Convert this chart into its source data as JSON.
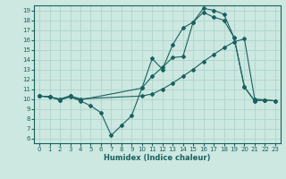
{
  "xlabel": "Humidex (Indice chaleur)",
  "xlim": [
    -0.5,
    23.5
  ],
  "ylim": [
    5.5,
    19.5
  ],
  "xticks": [
    0,
    1,
    2,
    3,
    4,
    5,
    6,
    7,
    8,
    9,
    10,
    11,
    12,
    13,
    14,
    15,
    16,
    17,
    18,
    19,
    20,
    21,
    22,
    23
  ],
  "yticks": [
    6,
    7,
    8,
    9,
    10,
    11,
    12,
    13,
    14,
    15,
    16,
    17,
    18,
    19
  ],
  "bg_color": "#cce8e0",
  "grid_color": "#aed4cc",
  "line_color": "#1a6060",
  "line1_x": [
    0,
    1,
    2,
    3,
    4,
    5,
    6,
    7,
    8,
    9,
    10,
    11,
    12,
    13,
    14,
    15,
    16,
    17,
    18,
    19,
    20,
    21,
    22,
    23
  ],
  "line1_y": [
    10.3,
    10.2,
    9.9,
    10.2,
    9.8,
    9.3,
    8.6,
    6.3,
    7.3,
    8.3,
    11.1,
    14.1,
    13.0,
    15.5,
    17.2,
    17.8,
    19.2,
    19.0,
    18.6,
    16.2,
    11.2,
    9.8,
    9.9,
    9.8
  ],
  "line2_x": [
    0,
    1,
    2,
    3,
    4,
    10,
    11,
    12,
    13,
    14,
    15,
    16,
    17,
    18,
    19,
    20,
    21,
    22,
    23
  ],
  "line2_y": [
    10.3,
    10.2,
    9.9,
    10.3,
    10.0,
    10.3,
    10.5,
    11.0,
    11.6,
    12.3,
    13.0,
    13.8,
    14.5,
    15.2,
    15.8,
    16.1,
    10.0,
    9.9,
    9.8
  ],
  "line3_x": [
    0,
    1,
    2,
    3,
    4,
    10,
    11,
    12,
    13,
    14,
    15,
    16,
    17,
    18,
    19,
    20,
    21,
    22
  ],
  "line3_y": [
    10.3,
    10.2,
    10.0,
    10.3,
    9.9,
    11.1,
    12.3,
    13.2,
    14.2,
    14.3,
    17.8,
    18.8,
    18.3,
    18.0,
    16.2,
    11.2,
    9.8,
    9.9
  ]
}
